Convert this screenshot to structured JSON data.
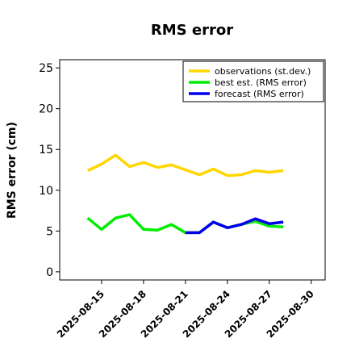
{
  "chart_data": {
    "type": "line",
    "title": "RMS error",
    "xlabel": "",
    "ylabel": "RMS error (cm)",
    "ylim": [
      -1,
      26
    ],
    "yticks": [
      0,
      5,
      10,
      15,
      20,
      25
    ],
    "xlim": [
      "2025-08-12",
      "2025-08-31"
    ],
    "xticks": [
      "2025-08-15",
      "2025-08-18",
      "2025-08-21",
      "2025-08-24",
      "2025-08-27",
      "2025-08-30"
    ],
    "highlight_tick": "2025-08-21",
    "highlight_color": "#228B22",
    "grid": false,
    "legend_position": "top-right",
    "series": [
      {
        "name": "observations (st.dev.)",
        "color": "#FFD700",
        "x": [
          "2025-08-14",
          "2025-08-15",
          "2025-08-16",
          "2025-08-17",
          "2025-08-18",
          "2025-08-19",
          "2025-08-20",
          "2025-08-21",
          "2025-08-22",
          "2025-08-23",
          "2025-08-24",
          "2025-08-25",
          "2025-08-26",
          "2025-08-27",
          "2025-08-28"
        ],
        "values": [
          12.4,
          13.2,
          14.3,
          12.9,
          13.4,
          12.8,
          13.1,
          12.5,
          11.9,
          12.6,
          11.8,
          11.9,
          12.4,
          12.2,
          12.4
        ]
      },
      {
        "name": "best est. (RMS error)",
        "color": "#00EE00",
        "x": [
          "2025-08-14",
          "2025-08-15",
          "2025-08-16",
          "2025-08-17",
          "2025-08-18",
          "2025-08-19",
          "2025-08-20",
          "2025-08-21",
          "2025-08-22",
          "2025-08-23",
          "2025-08-24",
          "2025-08-25",
          "2025-08-26",
          "2025-08-27",
          "2025-08-28"
        ],
        "values": [
          6.6,
          5.2,
          6.6,
          7.0,
          5.2,
          5.1,
          5.8,
          4.8,
          4.8,
          6.1,
          5.4,
          5.8,
          6.2,
          5.6,
          5.5
        ]
      },
      {
        "name": "forecast (RMS error)",
        "color": "#0000EE",
        "x": [
          "2025-08-21",
          "2025-08-22",
          "2025-08-23",
          "2025-08-24",
          "2025-08-25",
          "2025-08-26",
          "2025-08-27",
          "2025-08-28"
        ],
        "values": [
          4.8,
          4.8,
          6.1,
          5.4,
          5.8,
          6.5,
          5.9,
          6.1
        ]
      }
    ]
  }
}
